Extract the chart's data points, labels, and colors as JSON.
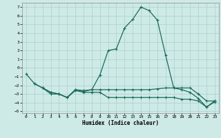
{
  "xlabel": "Humidex (Indice chaleur)",
  "bg_color": "#ceeae7",
  "grid_color": "#aed4d0",
  "line_color": "#1a6b5a",
  "xlim": [
    -0.5,
    23.5
  ],
  "ylim": [
    -5.2,
    7.5
  ],
  "xticks": [
    0,
    1,
    2,
    3,
    4,
    5,
    6,
    7,
    8,
    9,
    10,
    11,
    12,
    13,
    14,
    15,
    16,
    17,
    18,
    19,
    20,
    21,
    22,
    23
  ],
  "yticks": [
    -5,
    -4,
    -3,
    -2,
    -1,
    0,
    1,
    2,
    3,
    4,
    5,
    6,
    7
  ],
  "line1_x": [
    0,
    1,
    2,
    3,
    4,
    5,
    6,
    7,
    8,
    9,
    10,
    11,
    12,
    13,
    14,
    15,
    16,
    17,
    18,
    19,
    20,
    21,
    22,
    23
  ],
  "line1_y": [
    -0.7,
    -1.8,
    -2.3,
    -3.0,
    -3.0,
    -3.4,
    -2.5,
    -2.7,
    -2.5,
    -0.8,
    2.0,
    2.2,
    4.6,
    5.6,
    7.0,
    6.6,
    5.5,
    1.5,
    -2.3,
    -2.5,
    -2.8,
    -3.5,
    -4.5,
    -3.8
  ],
  "line2_x": [
    1,
    2,
    3,
    4,
    5,
    6,
    7,
    8,
    9,
    10,
    11,
    12,
    13,
    14,
    15,
    16,
    17,
    18,
    19,
    20,
    21,
    22,
    23
  ],
  "line2_y": [
    -1.8,
    -2.3,
    -2.8,
    -3.0,
    -3.4,
    -2.5,
    -2.6,
    -2.5,
    -2.5,
    -2.5,
    -2.5,
    -2.5,
    -2.5,
    -2.5,
    -2.5,
    -2.4,
    -2.3,
    -2.3,
    -2.3,
    -2.3,
    -3.0,
    -3.8,
    -3.8
  ],
  "line3_x": [
    2,
    3,
    4,
    5,
    6,
    7,
    8,
    9,
    10,
    11,
    12,
    13,
    14,
    15,
    16,
    17,
    18,
    19,
    20,
    21,
    22,
    23
  ],
  "line3_y": [
    -2.3,
    -2.8,
    -3.0,
    -3.4,
    -2.6,
    -2.8,
    -2.8,
    -2.8,
    -3.4,
    -3.4,
    -3.4,
    -3.4,
    -3.4,
    -3.4,
    -3.4,
    -3.4,
    -3.4,
    -3.6,
    -3.6,
    -3.8,
    -4.5,
    -3.9
  ]
}
